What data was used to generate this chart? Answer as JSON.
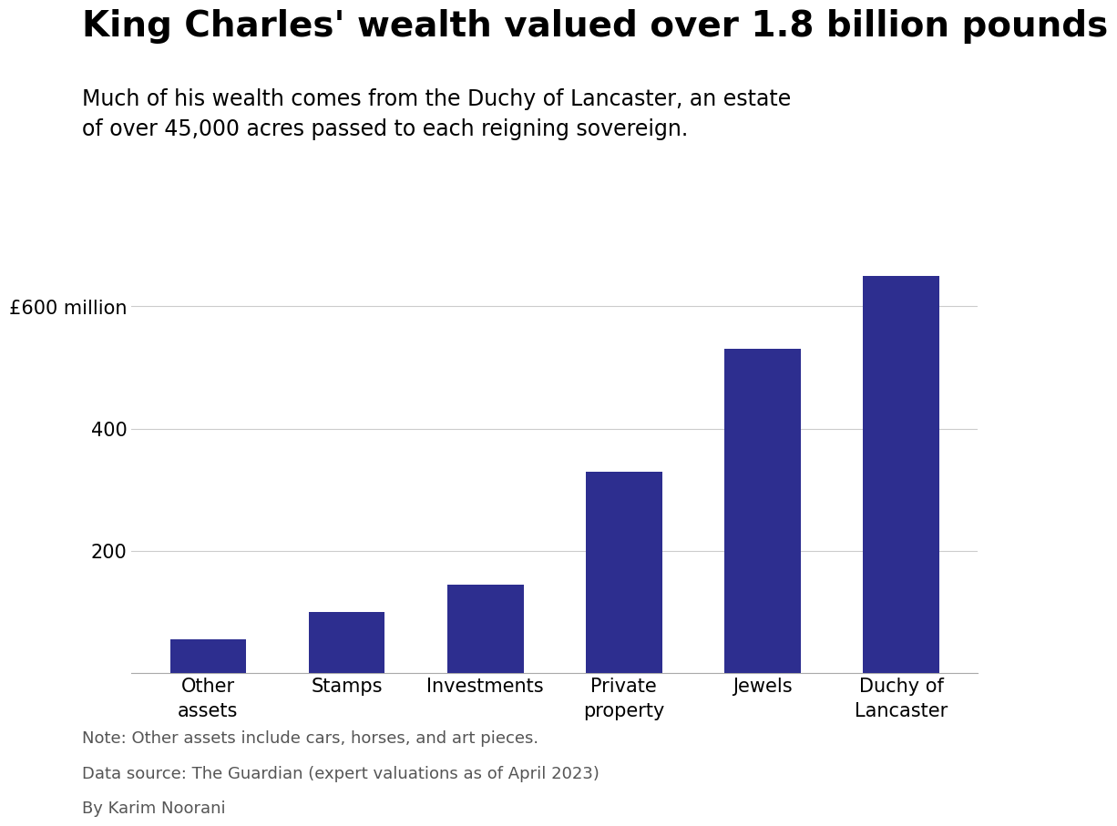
{
  "title": "King Charles' wealth valued over 1.8 billion pounds",
  "subtitle": "Much of his wealth comes from the Duchy of Lancaster, an estate\nof over 45,000 acres passed to each reigning sovereign.",
  "categories": [
    "Other\nassets",
    "Stamps",
    "Investments",
    "Private\nproperty",
    "Jewels",
    "Duchy of\nLancaster"
  ],
  "values": [
    55,
    100,
    145,
    330,
    530,
    650
  ],
  "bar_color": "#2d2e8f",
  "yticks": [
    0,
    200,
    400,
    600
  ],
  "ytick_labels": [
    "",
    "200",
    "400",
    "£600 million"
  ],
  "ylim": [
    0,
    720
  ],
  "note1": "Note: Other assets include cars, horses, and art pieces.",
  "note2": "Data source: The Guardian (expert valuations as of April 2023)",
  "note3": "By Karim Noorani",
  "background_color": "#ffffff",
  "title_fontsize": 28,
  "subtitle_fontsize": 17,
  "tick_fontsize": 15,
  "note_fontsize": 13,
  "note_color": "#555555",
  "grid_color": "#cccccc",
  "axis_color": "#aaaaaa"
}
